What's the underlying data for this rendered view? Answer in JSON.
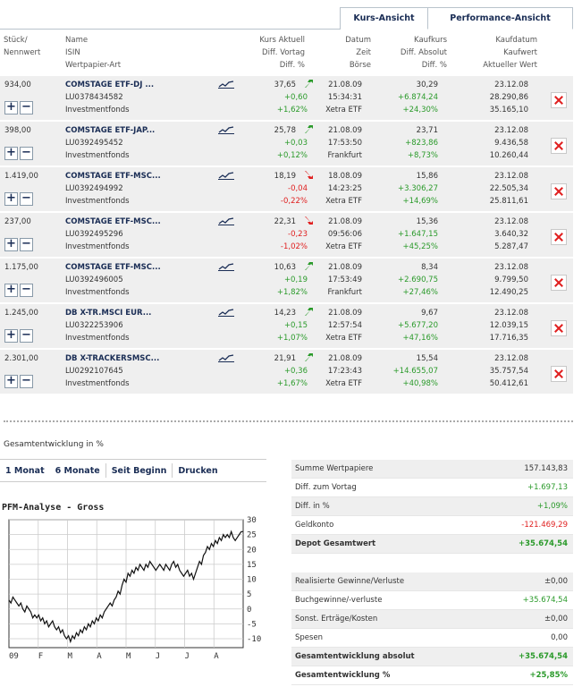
{
  "tabs": [
    {
      "label": "Kurs-Ansicht"
    },
    {
      "label": "Performance-Ansicht"
    }
  ],
  "headers": {
    "stueck": [
      "Stück/",
      "Nennwert"
    ],
    "name": [
      "Name",
      "ISIN",
      "Wertpapier-Art"
    ],
    "kurs": [
      "Kurs Aktuell",
      "Diff. Vortag",
      "Diff. %"
    ],
    "datum": [
      "Datum",
      "Zeit",
      "Börse"
    ],
    "kaufkurs": [
      "Kaufkurs",
      "Diff. Absolut",
      "Diff. %"
    ],
    "kaufdatum": [
      "Kaufdatum",
      "Kaufwert",
      "Aktueller Wert"
    ]
  },
  "positions": [
    {
      "stueck": "934,00",
      "name": "COMSTAGE ETF-DJ ...",
      "isin": "LU0378434582",
      "art": "Investmentfonds",
      "kurs": "37,65",
      "trend": "up",
      "diff": "+0,60",
      "diffpct": "+1,62%",
      "datum": "21.08.09",
      "zeit": "15:34:31",
      "boerse": "Xetra ETF",
      "kaufkurs": "30,29",
      "diffabs": "+6.874,24",
      "diffabspct": "+24,30%",
      "kaufdatum": "23.12.08",
      "kaufwert": "28.290,86",
      "aktwert": "35.165,10"
    },
    {
      "stueck": "398,00",
      "name": "COMSTAGE ETF-JAP...",
      "isin": "LU0392495452",
      "art": "Investmentfonds",
      "kurs": "25,78",
      "trend": "up",
      "diff": "+0,03",
      "diffpct": "+0,12%",
      "datum": "21.08.09",
      "zeit": "17:53:50",
      "boerse": "Frankfurt",
      "kaufkurs": "23,71",
      "diffabs": "+823,86",
      "diffabspct": "+8,73%",
      "kaufdatum": "23.12.08",
      "kaufwert": "9.436,58",
      "aktwert": "10.260,44"
    },
    {
      "stueck": "1.419,00",
      "name": "COMSTAGE ETF-MSC...",
      "isin": "LU0392494992",
      "art": "Investmentfonds",
      "kurs": "18,19",
      "trend": "down",
      "diff": "-0,04",
      "diffpct": "-0,22%",
      "datum": "18.08.09",
      "zeit": "14:23:25",
      "boerse": "Xetra ETF",
      "kaufkurs": "15,86",
      "diffabs": "+3.306,27",
      "diffabspct": "+14,69%",
      "kaufdatum": "23.12.08",
      "kaufwert": "22.505,34",
      "aktwert": "25.811,61"
    },
    {
      "stueck": "237,00",
      "name": "COMSTAGE ETF-MSC...",
      "isin": "LU0392495296",
      "art": "Investmentfonds",
      "kurs": "22,31",
      "trend": "down",
      "diff": "-0,23",
      "diffpct": "-1,02%",
      "datum": "21.08.09",
      "zeit": "09:56:06",
      "boerse": "Xetra ETF",
      "kaufkurs": "15,36",
      "diffabs": "+1.647,15",
      "diffabspct": "+45,25%",
      "kaufdatum": "23.12.08",
      "kaufwert": "3.640,32",
      "aktwert": "5.287,47"
    },
    {
      "stueck": "1.175,00",
      "name": "COMSTAGE ETF-MSC...",
      "isin": "LU0392496005",
      "art": "Investmentfonds",
      "kurs": "10,63",
      "trend": "up",
      "diff": "+0,19",
      "diffpct": "+1,82%",
      "datum": "21.08.09",
      "zeit": "17:53:49",
      "boerse": "Frankfurt",
      "kaufkurs": "8,34",
      "diffabs": "+2.690,75",
      "diffabspct": "+27,46%",
      "kaufdatum": "23.12.08",
      "kaufwert": "9.799,50",
      "aktwert": "12.490,25"
    },
    {
      "stueck": "1.245,00",
      "name": "DB X-TR.MSCI EUR...",
      "isin": "LU0322253906",
      "art": "Investmentfonds",
      "kurs": "14,23",
      "trend": "up",
      "diff": "+0,15",
      "diffpct": "+1,07%",
      "datum": "21.08.09",
      "zeit": "12:57:54",
      "boerse": "Xetra ETF",
      "kaufkurs": "9,67",
      "diffabs": "+5.677,20",
      "diffabspct": "+47,16%",
      "kaufdatum": "23.12.08",
      "kaufwert": "12.039,15",
      "aktwert": "17.716,35"
    },
    {
      "stueck": "2.301,00",
      "name": "DB X-TRACKERSMSC...",
      "isin": "LU0292107645",
      "art": "Investmentfonds",
      "kurs": "21,91",
      "trend": "up",
      "diff": "+0,36",
      "diffpct": "+1,67%",
      "datum": "21.08.09",
      "zeit": "17:23:43",
      "boerse": "Xetra ETF",
      "kaufkurs": "15,54",
      "diffabs": "+14.655,07",
      "diffabspct": "+40,98%",
      "kaufdatum": "23.12.08",
      "kaufwert": "35.757,54",
      "aktwert": "50.412,61"
    }
  ],
  "gesamt_title": "Gesamtentwicklung in %",
  "periods": [
    "1 Monat",
    "6 Monate",
    "Seit Beginn",
    "Drucken"
  ],
  "pfm_title": "PFM-Analyse - Gross",
  "summary1": [
    {
      "label": "Summe Wertpapiere",
      "value": "157.143,83",
      "cls": ""
    },
    {
      "label": "Diff. zum Vortag",
      "value": "+1.697,13",
      "cls": "pos"
    },
    {
      "label": "Diff. in %",
      "value": "+1,09%",
      "cls": "pos"
    },
    {
      "label": "Geldkonto",
      "value": "-121.469,29",
      "cls": "neg"
    },
    {
      "label": "Depot Gesamtwert",
      "value": "+35.674,54",
      "cls": "pos",
      "bold": true
    }
  ],
  "summary2": [
    {
      "label": "Realisierte Gewinne/Verluste",
      "value": "±0,00",
      "cls": ""
    },
    {
      "label": "Buchgewinne/-verluste",
      "value": "+35.674,54",
      "cls": "pos"
    },
    {
      "label": "Sonst. Erträge/Kosten",
      "value": "±0,00",
      "cls": ""
    },
    {
      "label": "Spesen",
      "value": "0,00",
      "cls": ""
    },
    {
      "label": "Gesamtentwicklung absolut",
      "value": "+35.674,54",
      "cls": "pos",
      "bold": true
    },
    {
      "label": "Gesamtentwicklung %",
      "value": "+25,85%",
      "cls": "pos",
      "bold": true
    }
  ],
  "colors": {
    "up": "#2a9a2a",
    "down": "#e02020",
    "accent": "#1a2d55",
    "row_bg": "#efefef"
  },
  "chart_data": {
    "type": "line",
    "title": "PFM-Analyse - Gross",
    "x_tick_labels": [
      "09",
      "F",
      "M",
      "A",
      "M",
      "J",
      "J",
      "A"
    ],
    "y_ticks": [
      -10,
      -5,
      0,
      5,
      10,
      15,
      20,
      25,
      30
    ],
    "ylim": [
      -13,
      30
    ],
    "grid": true,
    "x": [
      0,
      2,
      4,
      6,
      8,
      10,
      12,
      14,
      16,
      18,
      20,
      22,
      24,
      26,
      28,
      30,
      32,
      34,
      36,
      38,
      40,
      42,
      44,
      46,
      48,
      50,
      52,
      54,
      56,
      58,
      60,
      62,
      64,
      66,
      68,
      70,
      72,
      74,
      76,
      78,
      80,
      82,
      84,
      86,
      88,
      90,
      92,
      94,
      96,
      98,
      100,
      102,
      104,
      106,
      108,
      110,
      112,
      114,
      116,
      118,
      120,
      122,
      124,
      126,
      128,
      130,
      132,
      134,
      136,
      138,
      140,
      142,
      144,
      146,
      148,
      150,
      152,
      154,
      156,
      158,
      160,
      162,
      164,
      166,
      168,
      170,
      172,
      174,
      176,
      178,
      180,
      182,
      184,
      186,
      188,
      190,
      192,
      194,
      196,
      198,
      200,
      202,
      204,
      206,
      208,
      210,
      212,
      214,
      216,
      218,
      220,
      222,
      224,
      226,
      228,
      230,
      232,
      234,
      236
    ],
    "series": [
      {
        "values": [
          3,
          2,
          4,
          3,
          2,
          1,
          2,
          0,
          -1,
          1,
          0,
          -1,
          -3,
          -2,
          -3,
          -2,
          -4,
          -3,
          -5,
          -4,
          -6,
          -5,
          -4,
          -6,
          -7,
          -6,
          -8,
          -7,
          -9,
          -10,
          -9,
          -11,
          -9,
          -10,
          -8,
          -9,
          -7,
          -8,
          -6,
          -7,
          -5,
          -6,
          -4,
          -5,
          -3,
          -4,
          -2,
          -3,
          -1,
          0,
          1,
          2,
          1,
          3,
          4,
          6,
          5,
          8,
          10,
          9,
          12,
          11,
          13,
          12,
          14,
          13,
          15,
          14,
          13,
          15,
          14,
          16,
          15,
          14,
          13,
          14,
          15,
          14,
          13,
          15,
          14,
          13,
          15,
          16,
          14,
          15,
          13,
          12,
          11,
          12,
          13,
          11,
          12,
          10,
          12,
          14,
          16,
          15,
          18,
          19,
          21,
          20,
          22,
          21,
          23,
          22,
          24,
          23,
          25,
          24,
          25,
          24,
          26,
          24,
          23,
          24,
          25,
          26,
          26
        ]
      }
    ]
  }
}
